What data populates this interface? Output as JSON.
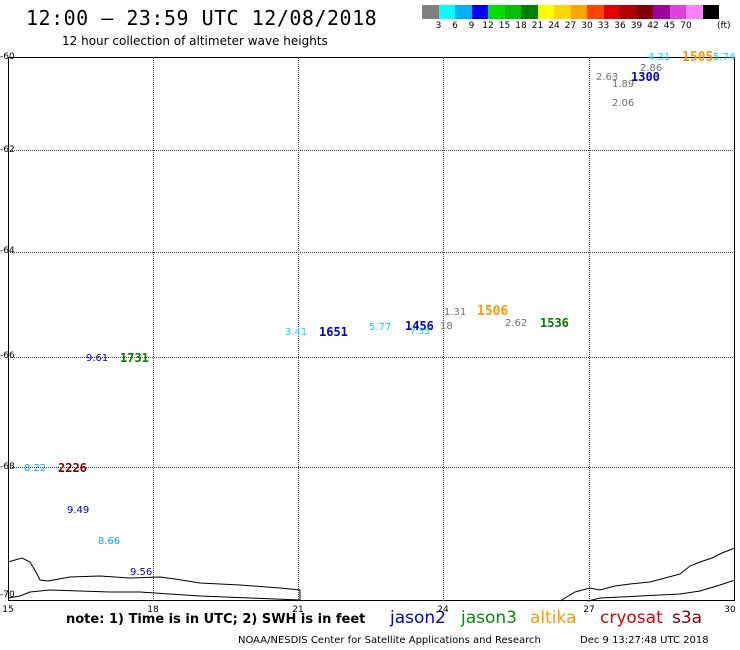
{
  "title": "12:00 – 23:59 UTC 12/08/2018",
  "subtitle": "12 hour collection of altimeter wave heights",
  "scale": {
    "colors": [
      "#808080",
      "#00ffff",
      "#00b0ff",
      "#0000ff",
      "#00e000",
      "#00c000",
      "#008000",
      "#ffff00",
      "#ffd700",
      "#ffa500",
      "#ff4500",
      "#e00000",
      "#b00000",
      "#800000",
      "#a000a0",
      "#e040e0",
      "#ff80ff",
      "#000000"
    ],
    "labels": [
      "3",
      "6",
      "9",
      "12",
      "15",
      "18",
      "21",
      "24",
      "27",
      "30",
      "33",
      "36",
      "39",
      "42",
      "45",
      "70"
    ],
    "units": "(ft)"
  },
  "axes": {
    "y_labels": [
      "-60",
      "-62",
      "-64",
      "-66",
      "-68",
      "-70"
    ],
    "x_labels": [
      "15",
      "18",
      "21",
      "24",
      "27",
      "30"
    ]
  },
  "heights": [
    {
      "text": "4.31",
      "color": "#00d8ff"
    },
    {
      "text": "1505",
      "color": "#ff9900",
      "kind": "time"
    },
    {
      "text": "5.74",
      "color": "#00d8ff"
    },
    {
      "text": "2.86",
      "color": "#707070"
    },
    {
      "text": "2.63",
      "color": "#707070"
    },
    {
      "text": "1.89",
      "color": "#707070"
    },
    {
      "text": "1300",
      "color": "#0000cc",
      "kind": "time"
    },
    {
      "text": "2.06",
      "color": "#707070"
    },
    {
      "text": "1.31",
      "color": "#707070"
    },
    {
      "text": "1506",
      "color": "#ff9900",
      "kind": "time"
    },
    {
      "text": "2.62",
      "color": "#707070"
    },
    {
      "text": "1536",
      "color": "#008000",
      "kind": "time"
    },
    {
      "text": "3.41",
      "color": "#00d8ff"
    },
    {
      "text": "1651",
      "color": "#0000cc",
      "kind": "time"
    },
    {
      "text": "5.77",
      "color": "#00d8ff"
    },
    {
      "text": "1456",
      "color": "#0000cc",
      "kind": "time"
    },
    {
      "text": "7.35",
      "color": "#00d8ff"
    },
    {
      "text": "18",
      "color": "#707070"
    },
    {
      "text": "9.61",
      "color": "#0000cc"
    },
    {
      "text": "1731",
      "color": "#008000",
      "kind": "time"
    },
    {
      "text": "8.22",
      "color": "#00b0ff"
    },
    {
      "text": "2226",
      "color": "#800000",
      "kind": "time"
    },
    {
      "text": "9.49",
      "color": "#0000cc"
    },
    {
      "text": "8.66",
      "color": "#00b0ff"
    },
    {
      "text": "9.56",
      "color": "#0000cc"
    }
  ],
  "note": "note: 1) Time is in UTC; 2) SWH is in feet",
  "legend": [
    {
      "name": "jason2",
      "color": "#0000dd"
    },
    {
      "name": "jason3",
      "color": "#009000"
    },
    {
      "name": "altika",
      "color": "#ff9900"
    },
    {
      "name": "cryosat",
      "color": "#dd0000"
    },
    {
      "name": "s3a",
      "color": "#800000"
    }
  ],
  "credit": "NOAA/NESDIS Center for Satellite Applications and Research",
  "timestamp": "Dec  9 13:27:48 UTC 2018"
}
